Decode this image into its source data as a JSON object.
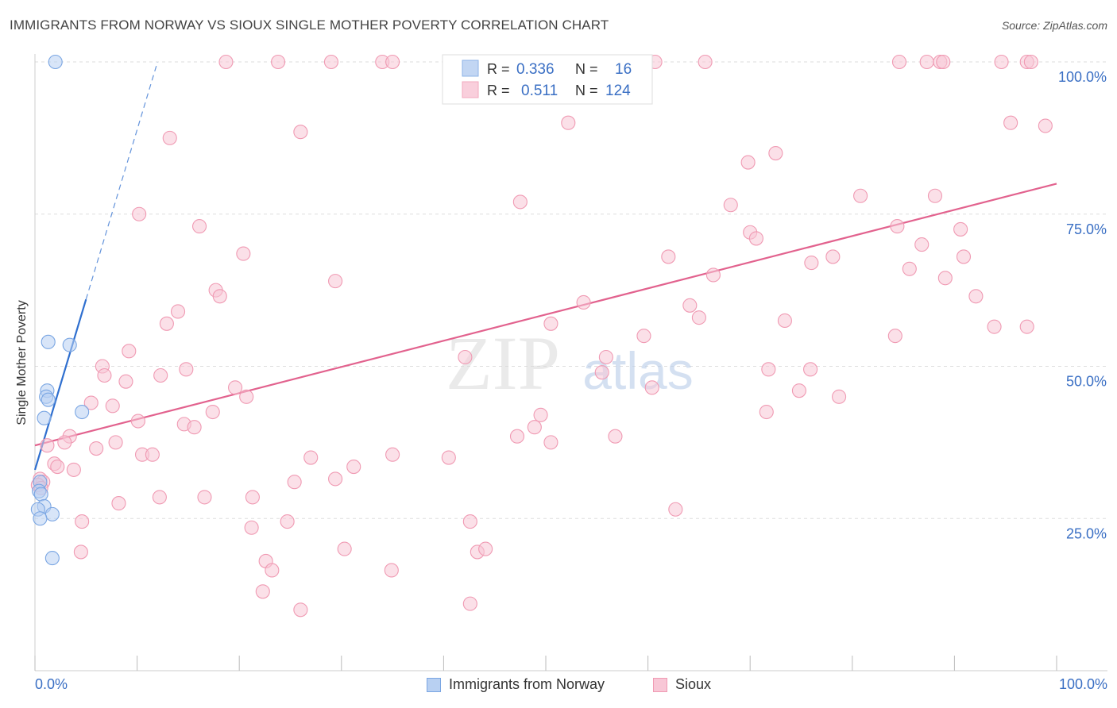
{
  "chart_data": {
    "type": "scatter",
    "title": "IMMIGRANTS FROM NORWAY VS SIOUX SINGLE MOTHER POVERTY CORRELATION CHART",
    "source": "Source: ZipAtlas.com",
    "xlabel": "",
    "ylabel": "Single Mother Poverty",
    "xlim": [
      0,
      100
    ],
    "ylim": [
      0,
      100
    ],
    "x_tick_labels": {
      "left": "0.0%",
      "right": "100.0%"
    },
    "y_tick_labels": [
      {
        "value": 100,
        "label": "100.0%"
      },
      {
        "value": 75,
        "label": "75.0%"
      },
      {
        "value": 50,
        "label": "50.0%"
      },
      {
        "value": 25,
        "label": "25.0%"
      }
    ],
    "watermark": {
      "zip": "ZIP",
      "atlas": "atlas"
    },
    "legend": {
      "rows": [
        {
          "r_label": "R =",
          "r_value": "0.336",
          "n_label": "N =",
          "n_value": "16"
        },
        {
          "r_label": "R =",
          "r_value": "0.511",
          "n_label": "N =",
          "n_value": "124"
        }
      ]
    },
    "series": [
      {
        "name": "Immigrants from Norway",
        "color": "#7aa6e3",
        "fill": "#b8d0f2",
        "line_color": "#2f6fcf",
        "trend": {
          "x0": 0,
          "y0": 33,
          "x1": 5,
          "y1": 61,
          "dash_to_x": 12,
          "dash_to_y": 100
        },
        "points": [
          [
            2,
            100
          ],
          [
            1.3,
            54
          ],
          [
            3.4,
            53.5
          ],
          [
            1.2,
            46
          ],
          [
            1.1,
            45
          ],
          [
            1.3,
            44.5
          ],
          [
            4.6,
            42.5
          ],
          [
            0.9,
            41.5
          ],
          [
            0.5,
            31
          ],
          [
            0.4,
            29.5
          ],
          [
            0.6,
            29
          ],
          [
            0.9,
            27
          ],
          [
            0.3,
            26.5
          ],
          [
            1.7,
            25.7
          ],
          [
            0.5,
            25
          ],
          [
            1.7,
            18.5
          ]
        ]
      },
      {
        "name": "Sioux",
        "color": "#f09ab3",
        "fill": "#f8c7d6",
        "line_color": "#e2628e",
        "trend": {
          "x0": 0,
          "y0": 37,
          "x1": 100,
          "y1": 80
        },
        "points": [
          [
            18.7,
            100
          ],
          [
            23.8,
            100
          ],
          [
            29,
            100
          ],
          [
            34,
            100
          ],
          [
            35,
            100
          ],
          [
            41.7,
            100
          ],
          [
            49.4,
            100
          ],
          [
            60.7,
            100
          ],
          [
            65.6,
            100
          ],
          [
            84.6,
            100
          ],
          [
            87.3,
            100
          ],
          [
            88.6,
            100
          ],
          [
            88.9,
            100
          ],
          [
            94.6,
            100
          ],
          [
            97.1,
            100
          ],
          [
            97.5,
            100
          ],
          [
            52.2,
            90
          ],
          [
            95.5,
            90
          ],
          [
            98.9,
            89.5
          ],
          [
            26,
            88.5
          ],
          [
            13.2,
            87.5
          ],
          [
            72.5,
            85
          ],
          [
            69.8,
            83.5
          ],
          [
            80.8,
            78
          ],
          [
            88.1,
            78
          ],
          [
            47.5,
            77
          ],
          [
            68.1,
            76.5
          ],
          [
            10.2,
            75
          ],
          [
            16.1,
            73
          ],
          [
            84.4,
            73
          ],
          [
            90.6,
            72.5
          ],
          [
            70,
            72
          ],
          [
            70.6,
            71
          ],
          [
            86.8,
            70
          ],
          [
            78.1,
            68
          ],
          [
            90.9,
            68
          ],
          [
            20.4,
            68.5
          ],
          [
            62,
            68
          ],
          [
            76,
            67
          ],
          [
            85.6,
            66
          ],
          [
            66.4,
            65
          ],
          [
            89.1,
            64.5
          ],
          [
            29.4,
            64
          ],
          [
            17.7,
            62.5
          ],
          [
            18.1,
            61.5
          ],
          [
            92.1,
            61.5
          ],
          [
            53.7,
            60.5
          ],
          [
            64.1,
            60
          ],
          [
            14,
            59
          ],
          [
            65,
            58
          ],
          [
            73.4,
            57.5
          ],
          [
            12.9,
            57
          ],
          [
            50.5,
            57
          ],
          [
            93.9,
            56.5
          ],
          [
            97.1,
            56.5
          ],
          [
            59.6,
            55
          ],
          [
            84.2,
            55
          ],
          [
            9.2,
            52.5
          ],
          [
            55.9,
            51.5
          ],
          [
            42.1,
            51.5
          ],
          [
            6.6,
            50
          ],
          [
            14.8,
            49.5
          ],
          [
            55.5,
            49
          ],
          [
            71.8,
            49.5
          ],
          [
            75.9,
            49.5
          ],
          [
            12.3,
            48.5
          ],
          [
            6.8,
            48.5
          ],
          [
            8.9,
            47.5
          ],
          [
            19.6,
            46.5
          ],
          [
            60.4,
            46.5
          ],
          [
            74.8,
            46
          ],
          [
            20.7,
            45
          ],
          [
            78.7,
            45
          ],
          [
            5.5,
            44
          ],
          [
            7.6,
            43.5
          ],
          [
            17.4,
            42.5
          ],
          [
            71.6,
            42.5
          ],
          [
            49.5,
            42
          ],
          [
            10.1,
            41
          ],
          [
            14.6,
            40.5
          ],
          [
            15.6,
            40
          ],
          [
            48.9,
            40
          ],
          [
            47.2,
            38.5
          ],
          [
            56.8,
            38.5
          ],
          [
            3.4,
            38.5
          ],
          [
            2.9,
            37.5
          ],
          [
            7.9,
            37.5
          ],
          [
            50.5,
            37.5
          ],
          [
            1.2,
            37
          ],
          [
            6,
            36.5
          ],
          [
            10.5,
            35.5
          ],
          [
            11.5,
            35.5
          ],
          [
            35,
            35.5
          ],
          [
            27,
            35
          ],
          [
            40.5,
            35
          ],
          [
            1.9,
            34
          ],
          [
            2.2,
            33.5
          ],
          [
            31.2,
            33.5
          ],
          [
            3.8,
            33
          ],
          [
            0.5,
            31.5
          ],
          [
            0.8,
            31
          ],
          [
            25.4,
            31
          ],
          [
            29.4,
            31.5
          ],
          [
            0.3,
            30.5
          ],
          [
            0.6,
            30
          ],
          [
            12.2,
            28.5
          ],
          [
            16.6,
            28.5
          ],
          [
            21.3,
            28.5
          ],
          [
            8.2,
            27.5
          ],
          [
            62.7,
            26.5
          ],
          [
            4.6,
            24.5
          ],
          [
            24.7,
            24.5
          ],
          [
            42.6,
            24.5
          ],
          [
            21.2,
            23.5
          ],
          [
            4.5,
            19.5
          ],
          [
            30.3,
            20
          ],
          [
            43.3,
            19.5
          ],
          [
            44.1,
            20
          ],
          [
            22.6,
            18
          ],
          [
            23.2,
            16.5
          ],
          [
            34.9,
            16.5
          ],
          [
            22.3,
            13
          ],
          [
            26,
            10
          ],
          [
            42.6,
            11
          ]
        ]
      }
    ]
  }
}
